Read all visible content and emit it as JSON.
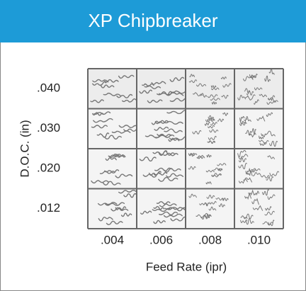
{
  "header": {
    "title": "XP Chipbreaker"
  },
  "grid": {
    "y_label": "D.O.C. (in)",
    "x_label": "Feed Rate (ipr)",
    "rows": [
      ".040",
      ".030",
      ".020",
      ".012"
    ],
    "columns": [
      ".004",
      ".006",
      ".008",
      ".010"
    ]
  }
}
